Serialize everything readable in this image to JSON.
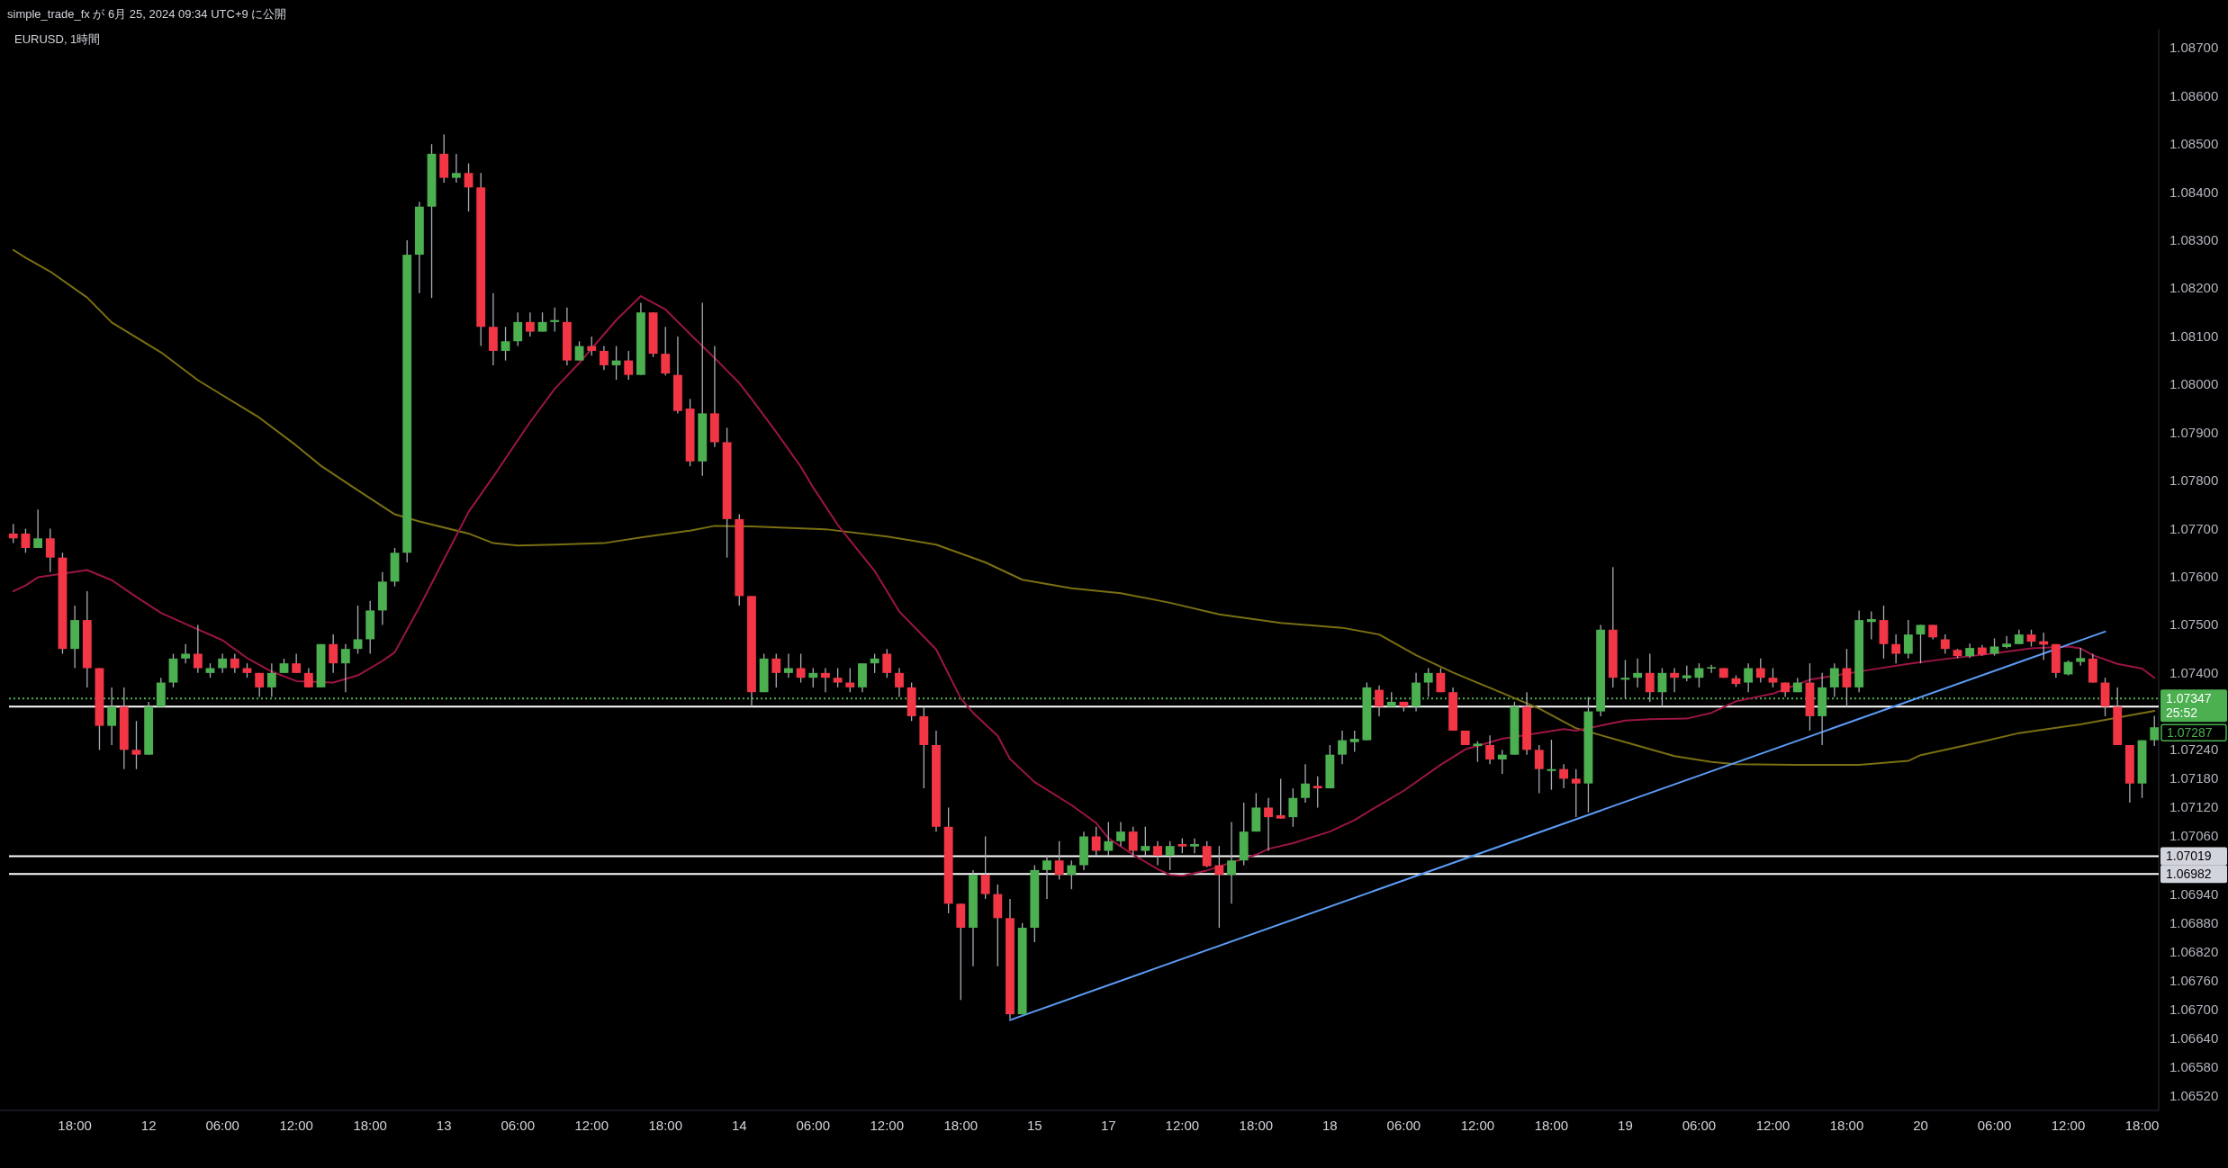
{
  "chart_data": {
    "type": "candlestick",
    "title": "EURUSD, 1時間",
    "annotations": [
      "simple_trade_fx が 6月 25, 2024 09:34 UTC+9 に公開",
      "25:52",
      "1.07287"
    ],
    "categories": [
      null,
      null,
      null,
      null,
      null,
      "18:00",
      null,
      null,
      null,
      null,
      null,
      "12",
      null,
      null,
      null,
      null,
      null,
      "06:00",
      null,
      null,
      null,
      null,
      null,
      "12:00",
      null,
      null,
      null,
      null,
      null,
      "18:00",
      null,
      null,
      null,
      null,
      null,
      "13",
      null,
      null,
      null,
      null,
      null,
      "06:00",
      null,
      null,
      null,
      null,
      null,
      "12:00",
      null,
      null,
      null,
      null,
      null,
      "18:00",
      null,
      null,
      null,
      null,
      null,
      "14",
      null,
      null,
      null,
      null,
      null,
      "06:00",
      null,
      null,
      null,
      null,
      null,
      "12:00",
      null,
      null,
      null,
      null,
      null,
      "18:00",
      null,
      null,
      null,
      null,
      null,
      "15",
      null,
      null,
      null,
      null,
      null,
      "17",
      null,
      null,
      null,
      null,
      null,
      "12:00",
      null,
      null,
      null,
      null,
      null,
      "18:00",
      null,
      null,
      null,
      null,
      null,
      "18",
      null,
      null,
      null,
      null,
      null,
      "06:00",
      null,
      null,
      null,
      null,
      null,
      "12:00",
      null,
      null,
      null,
      null,
      null,
      "18:00",
      null,
      null,
      null,
      null,
      null,
      "19",
      null,
      null,
      null,
      null,
      null,
      "06:00",
      null,
      null,
      null,
      null,
      null,
      "12:00",
      null,
      null,
      null,
      null,
      null,
      "18:00",
      null,
      null,
      null,
      null,
      null,
      "20",
      null,
      null,
      null,
      null,
      null,
      "06:00",
      null,
      null,
      null,
      null,
      null,
      "12:00",
      null,
      null,
      null,
      null,
      null,
      "18:00",
      null
    ],
    "ylim": [
      1.0649,
      1.0874
    ],
    "yticks": [
      {
        "value": 1.087,
        "label": "1.08700"
      },
      {
        "value": 1.086,
        "label": "1.08600"
      },
      {
        "value": 1.085,
        "label": "1.08500"
      },
      {
        "value": 1.084,
        "label": "1.08400"
      },
      {
        "value": 1.083,
        "label": "1.08300"
      },
      {
        "value": 1.082,
        "label": "1.08200"
      },
      {
        "value": 1.081,
        "label": "1.08100"
      },
      {
        "value": 1.08,
        "label": "1.08000"
      },
      {
        "value": 1.079,
        "label": "1.07900"
      },
      {
        "value": 1.078,
        "label": "1.07800"
      },
      {
        "value": 1.077,
        "label": "1.07700"
      },
      {
        "value": 1.076,
        "label": "1.07600"
      },
      {
        "value": 1.075,
        "label": "1.07500"
      },
      {
        "value": 1.074,
        "label": "1.07400"
      },
      {
        "value": 1.0724,
        "label": "1.07240"
      },
      {
        "value": 1.0718,
        "label": "1.07180"
      },
      {
        "value": 1.0712,
        "label": "1.07120"
      },
      {
        "value": 1.0706,
        "label": "1.07060"
      },
      {
        "value": 1.0694,
        "label": "1.06940"
      },
      {
        "value": 1.0688,
        "label": "1.06880"
      },
      {
        "value": 1.0682,
        "label": "1.06820"
      },
      {
        "value": 1.0676,
        "label": "1.06760"
      },
      {
        "value": 1.067,
        "label": "1.06700"
      },
      {
        "value": 1.0664,
        "label": "1.06640"
      },
      {
        "value": 1.0658,
        "label": "1.06580"
      },
      {
        "value": 1.0652,
        "label": "1.06520"
      }
    ],
    "ref_lines": [
      {
        "axis": "y",
        "value": 1.0733,
        "color": "#ffffff"
      },
      {
        "axis": "y",
        "value": 1.07019,
        "label": "1.07019",
        "color": "#ffffff"
      },
      {
        "axis": "y",
        "value": 1.06982,
        "label": "1.06982",
        "color": "#ffffff"
      },
      {
        "axis": "y",
        "value": 1.07347,
        "label": "1.07347",
        "color": "#4caf50",
        "line_style": "dotted"
      }
    ],
    "series": [
      {
        "type": "line",
        "color": "#7a6f12",
        "values": [
          1.0828,
          1.08264,
          null,
          1.08235,
          null,
          null,
          1.08181,
          null,
          1.08129,
          null,
          null,
          null,
          1.08067,
          null,
          null,
          1.08009,
          null,
          null,
          null,
          null,
          1.07931,
          null,
          null,
          1.07873,
          null,
          1.07831,
          null,
          null,
          1.0778,
          null,
          null,
          1.0773,
          null,
          1.07715,
          null,
          null,
          null,
          1.0769,
          null,
          1.0767,
          null,
          1.07665,
          null,
          null,
          1.07667,
          null,
          null,
          null,
          1.0767,
          null,
          null,
          1.07682,
          null,
          null,
          null,
          1.07696,
          null,
          1.07706,
          null,
          null,
          1.07705,
          null,
          null,
          null,
          null,
          null,
          1.07699,
          null,
          null,
          null,
          null,
          1.07684,
          null,
          null,
          null,
          1.07667,
          null,
          null,
          null,
          1.0763,
          null,
          null,
          1.07594,
          null,
          null,
          null,
          1.07576,
          null,
          null,
          null,
          1.07566,
          null,
          null,
          null,
          1.07546,
          null,
          null,
          null,
          1.07522,
          null,
          null,
          null,
          null,
          1.07504,
          null,
          null,
          null,
          null,
          1.07494,
          null,
          null,
          1.0748,
          null,
          null,
          1.07437,
          null,
          null,
          1.07401,
          null,
          null,
          1.07369,
          null,
          null,
          null,
          1.07326,
          null,
          null,
          1.07285,
          null,
          null,
          null,
          1.07256,
          null,
          null,
          null,
          1.07227,
          null,
          null,
          1.07215,
          null,
          1.0721,
          null,
          null,
          null,
          null,
          1.07209,
          null,
          null,
          null,
          null,
          1.07209,
          null,
          null,
          null,
          1.07217,
          1.07229,
          null,
          null,
          null,
          null,
          1.07257,
          null,
          null,
          1.07275,
          null,
          null,
          null,
          null,
          1.07293,
          null,
          null,
          null,
          null,
          null,
          1.07321
        ]
      },
      {
        "type": "line",
        "color": "#9b1545",
        "values": [
          1.0757,
          1.07582,
          1.07599,
          null,
          null,
          null,
          1.07614,
          null,
          1.07593,
          null,
          1.07558,
          null,
          1.07525,
          null,
          1.07502,
          null,
          null,
          1.07468,
          null,
          1.07431,
          null,
          1.07403,
          null,
          1.07383,
          null,
          null,
          1.0738,
          null,
          1.07395,
          null,
          1.07425,
          1.07443,
          null,
          1.07537,
          null,
          1.07636,
          null,
          1.07735,
          null,
          1.07808,
          null,
          null,
          1.07922,
          null,
          1.07991,
          null,
          1.08045,
          null,
          null,
          1.08134,
          null,
          1.08184,
          null,
          1.08156,
          null,
          1.08105,
          null,
          1.08055,
          1.08029,
          1.08003,
          1.0797,
          null,
          1.07901,
          null,
          1.07829,
          1.07786,
          null,
          1.07708,
          null,
          null,
          1.07612,
          null,
          1.07528,
          null,
          null,
          1.07449,
          null,
          1.07347,
          1.07317,
          null,
          1.07269,
          1.07221,
          null,
          1.07173,
          null,
          null,
          1.07125,
          null,
          1.07088,
          1.07056,
          null,
          1.07022,
          null,
          1.06992,
          1.0698,
          1.06978,
          null,
          1.06989,
          null,
          null,
          null,
          1.07022,
          1.07034,
          null,
          1.07046,
          null,
          null,
          1.0707,
          null,
          1.07094,
          null,
          1.07125,
          null,
          1.07155,
          null,
          null,
          1.07209,
          null,
          1.07241,
          null,
          null,
          1.07263,
          null,
          null,
          null,
          null,
          1.07283,
          1.0728,
          null,
          null,
          null,
          1.07301,
          null,
          1.07304,
          null,
          null,
          1.07305,
          null,
          1.07317,
          null,
          1.07341,
          null,
          null,
          1.07357,
          null,
          null,
          1.07386,
          null,
          null,
          null,
          null,
          1.07407,
          null,
          null,
          1.07419,
          null,
          null,
          1.07429,
          null,
          null,
          null,
          1.07441,
          null,
          null,
          1.07451,
          null,
          null,
          1.07455,
          1.07451,
          1.07437,
          null,
          1.07419,
          null,
          1.07409,
          1.0739
        ]
      },
      {
        "type": "line",
        "color": "#5b9cf6",
        "values": [
          null,
          null,
          null,
          null,
          null,
          null,
          null,
          null,
          null,
          null,
          null,
          null,
          null,
          null,
          null,
          null,
          null,
          null,
          null,
          null,
          null,
          null,
          null,
          null,
          null,
          null,
          null,
          null,
          null,
          null,
          null,
          null,
          null,
          null,
          null,
          null,
          null,
          null,
          null,
          null,
          null,
          null,
          null,
          null,
          null,
          null,
          null,
          null,
          null,
          null,
          null,
          null,
          null,
          null,
          null,
          null,
          null,
          null,
          null,
          null,
          null,
          null,
          null,
          null,
          null,
          null,
          null,
          null,
          null,
          null,
          null,
          null,
          null,
          null,
          null,
          null,
          null,
          null,
          null,
          null,
          null,
          1.06678,
          null,
          null,
          null,
          null,
          null,
          null,
          null,
          null,
          null,
          null,
          null,
          null,
          null,
          null,
          null,
          null,
          null,
          null,
          null,
          null,
          null,
          null,
          null,
          null,
          null,
          null,
          null,
          null,
          null,
          null,
          null,
          null,
          null,
          null,
          null,
          null,
          null,
          null,
          null,
          null,
          null,
          null,
          null,
          null,
          null,
          null,
          null,
          null,
          null,
          null,
          null,
          null,
          null,
          null,
          null,
          null,
          null,
          null,
          null,
          null,
          null,
          null,
          null,
          null,
          null,
          null,
          null,
          null,
          null,
          null,
          null,
          null,
          null,
          null,
          null,
          null,
          null,
          null,
          null,
          null,
          null,
          null,
          null,
          null,
          null,
          null,
          null,
          null,
          1.07486,
          null,
          null,
          null,
          null
        ]
      },
      {
        "ohlc": [
          [
            1.0769,
            1.0771,
            1.0767,
            1.0768
          ],
          [
            1.0769,
            1.077,
            1.0765,
            1.0766
          ],
          [
            1.0766,
            1.0774,
            1.0766,
            1.0768
          ],
          [
            1.0768,
            1.077,
            1.0761,
            1.0764
          ],
          [
            1.0764,
            1.0765,
            1.0744,
            1.0745
          ],
          [
            1.0745,
            1.0754,
            1.0741,
            1.0751
          ],
          [
            1.0751,
            1.0757,
            1.0737,
            1.0741
          ],
          [
            1.0741,
            1.0741,
            1.0724,
            1.0729
          ],
          [
            1.0729,
            1.0737,
            1.0725,
            1.0733
          ],
          [
            1.0733,
            1.0737,
            1.072,
            1.0724
          ],
          [
            1.0724,
            1.073,
            1.072,
            1.0723
          ],
          [
            1.0723,
            1.0734,
            1.0723,
            1.0733
          ],
          [
            1.0733,
            1.0739,
            1.0733,
            1.0738
          ],
          [
            1.0738,
            1.0744,
            1.0737,
            1.0743
          ],
          [
            1.0743,
            1.0746,
            1.0742,
            1.0744
          ],
          [
            1.0744,
            1.075,
            1.074,
            1.0741
          ],
          [
            1.074,
            1.0742,
            1.0739,
            1.0741
          ],
          [
            1.0741,
            1.0744,
            1.074,
            1.0743
          ],
          [
            1.0743,
            1.0744,
            1.074,
            1.0741
          ],
          [
            1.0741,
            1.0742,
            1.0739,
            1.074
          ],
          [
            1.074,
            1.074,
            1.0735,
            1.0737
          ],
          [
            1.0737,
            1.0742,
            1.0735,
            1.074
          ],
          [
            1.074,
            1.0743,
            1.074,
            1.0742
          ],
          [
            1.0742,
            1.0744,
            1.074,
            1.074
          ],
          [
            1.074,
            1.0741,
            1.0737,
            1.0737
          ],
          [
            1.0737,
            1.0746,
            1.0737,
            1.0746
          ],
          [
            1.0746,
            1.0748,
            1.074,
            1.0742
          ],
          [
            1.0742,
            1.0746,
            1.0736,
            1.0745
          ],
          [
            1.0745,
            1.0754,
            1.0744,
            1.0747
          ],
          [
            1.0747,
            1.0755,
            1.0744,
            1.0753
          ],
          [
            1.0753,
            1.0761,
            1.075,
            1.0759
          ],
          [
            1.0759,
            1.0766,
            1.0758,
            1.0765
          ],
          [
            1.0765,
            1.083,
            1.0763,
            1.0827
          ],
          [
            1.0827,
            1.0838,
            1.0819,
            1.0837
          ],
          [
            1.0837,
            1.085,
            1.0818,
            1.0848
          ],
          [
            1.0848,
            1.0852,
            1.0842,
            1.0843
          ],
          [
            1.0843,
            1.0848,
            1.0842,
            1.0844
          ],
          [
            1.0844,
            1.0846,
            1.0836,
            1.0841
          ],
          [
            1.0841,
            1.0844,
            1.0808,
            1.0812
          ],
          [
            1.0812,
            1.0819,
            1.0804,
            1.0807
          ],
          [
            1.0807,
            1.0812,
            1.0805,
            1.0809
          ],
          [
            1.0809,
            1.0815,
            1.0808,
            1.0813
          ],
          [
            1.0813,
            1.0815,
            1.081,
            1.0811
          ],
          [
            1.0811,
            1.0815,
            1.0811,
            1.0813
          ],
          [
            1.0813,
            1.0816,
            1.0811,
            1.08134
          ],
          [
            1.0813,
            1.0816,
            1.0804,
            1.0805
          ],
          [
            1.0805,
            1.0809,
            1.0805,
            1.0808
          ],
          [
            1.0808,
            1.081,
            1.0806,
            1.0807
          ],
          [
            1.0807,
            1.0808,
            1.0803,
            1.0804
          ],
          [
            1.0804,
            1.0808,
            1.0801,
            1.0805
          ],
          [
            1.0805,
            1.0807,
            1.0801,
            1.0802
          ],
          [
            1.0802,
            1.0817,
            1.0802,
            1.0815
          ],
          [
            1.0815,
            1.0815,
            1.08057,
            1.08064
          ],
          [
            1.08064,
            1.0812,
            1.08019,
            1.08023
          ],
          [
            1.0802,
            1.081,
            1.0794,
            1.07945
          ],
          [
            1.0795,
            1.0797,
            1.0783,
            1.0784
          ],
          [
            1.0784,
            1.0817,
            1.0781,
            1.0794
          ],
          [
            1.0794,
            1.0808,
            1.0787,
            1.0788
          ],
          [
            1.0788,
            1.0791,
            1.0764,
            1.0772
          ],
          [
            1.0772,
            1.0773,
            1.0754,
            1.0756
          ],
          [
            1.0756,
            1.0756,
            1.0733,
            1.0736
          ],
          [
            1.0736,
            1.0744,
            1.0736,
            1.0743
          ],
          [
            1.0743,
            1.0744,
            1.0737,
            1.074
          ],
          [
            1.074,
            1.0744,
            1.0739,
            1.0741
          ],
          [
            1.0741,
            1.0744,
            1.0738,
            1.0739
          ],
          [
            1.0739,
            1.0741,
            1.0737,
            1.074
          ],
          [
            1.074,
            1.0741,
            1.0736,
            1.0739
          ],
          [
            1.0739,
            1.0741,
            1.0737,
            1.0738
          ],
          [
            1.0738,
            1.0741,
            1.0736,
            1.0737
          ],
          [
            1.0737,
            1.0742,
            1.0736,
            1.0742
          ],
          [
            1.0742,
            1.0744,
            1.074,
            1.0743
          ],
          [
            1.0744,
            1.0745,
            1.0739,
            1.074
          ],
          [
            1.074,
            1.0741,
            1.0735,
            1.0737
          ],
          [
            1.0737,
            1.0738,
            1.073,
            1.0731
          ],
          [
            1.0731,
            1.0733,
            1.0716,
            1.0725
          ],
          [
            1.0725,
            1.0728,
            1.0707,
            1.0708
          ],
          [
            1.0708,
            1.0712,
            1.069,
            1.0692
          ],
          [
            1.0692,
            1.0692,
            1.0672,
            1.0687
          ],
          [
            1.0687,
            1.0699,
            1.0679,
            1.0698
          ],
          [
            1.0698,
            1.0706,
            1.0693,
            1.0694
          ],
          [
            1.0694,
            1.0696,
            1.0679,
            1.0689
          ],
          [
            1.0689,
            1.0693,
            1.0668,
            1.0669
          ],
          [
            1.0669,
            1.0688,
            1.0669,
            1.0687
          ],
          [
            1.0687,
            1.07,
            1.0684,
            1.0699
          ],
          [
            1.0699,
            1.0702,
            1.0693,
            1.0701
          ],
          [
            1.0701,
            1.0705,
            1.0697,
            1.0698
          ],
          [
            1.0698,
            1.0701,
            1.0695,
            1.07
          ],
          [
            1.07,
            1.0707,
            1.0699,
            1.0706
          ],
          [
            1.0706,
            1.0708,
            1.0702,
            1.0703
          ],
          [
            1.0703,
            1.0709,
            1.0702,
            1.0705
          ],
          [
            1.0705,
            1.0709,
            1.0704,
            1.0707
          ],
          [
            1.0707,
            1.0708,
            1.0702,
            1.0703
          ],
          [
            1.0703,
            1.0708,
            1.0702,
            1.0704
          ],
          [
            1.0704,
            1.0705,
            1.07,
            1.0702
          ],
          [
            1.0702,
            1.0705,
            1.0699,
            1.0704
          ],
          [
            1.07044,
            1.07056,
            1.07025,
            1.07039
          ],
          [
            1.07039,
            1.07056,
            1.07025,
            1.07044
          ],
          [
            1.0704,
            1.0705,
            1.06996,
            1.06998
          ],
          [
            1.07,
            1.0704,
            1.0687,
            1.0698
          ],
          [
            1.0698,
            1.0709,
            1.0692,
            1.0701
          ],
          [
            1.0701,
            1.0713,
            1.07,
            1.0707
          ],
          [
            1.0707,
            1.0715,
            1.0707,
            1.0712
          ],
          [
            1.0712,
            1.0714,
            1.0703,
            1.071
          ],
          [
            1.07104,
            1.0718,
            1.07097,
            1.07097
          ],
          [
            1.071,
            1.0716,
            1.0708,
            1.0714
          ],
          [
            1.0714,
            1.0721,
            1.0713,
            1.0717
          ],
          [
            1.07165,
            1.07185,
            1.0712,
            1.0716
          ],
          [
            1.0716,
            1.0725,
            1.0716,
            1.0723
          ],
          [
            1.0723,
            1.0728,
            1.0721,
            1.0726
          ],
          [
            1.07256,
            1.0728,
            1.07236,
            1.07263
          ],
          [
            1.0726,
            1.0738,
            1.0726,
            1.0737
          ],
          [
            1.07365,
            1.07374,
            1.0731,
            1.0733
          ],
          [
            1.0733,
            1.0736,
            1.0733,
            1.0734
          ],
          [
            1.0734,
            1.0734,
            1.0732,
            1.0733
          ],
          [
            1.0733,
            1.074,
            1.0732,
            1.0738
          ],
          [
            1.0738,
            1.0741,
            1.0735,
            1.074
          ],
          [
            1.074,
            1.0741,
            1.0736,
            1.0736
          ],
          [
            1.0736,
            1.0737,
            1.0728,
            1.0728
          ],
          [
            1.0728,
            1.0728,
            1.0725,
            1.0725
          ],
          [
            1.07248,
            1.07258,
            1.07215,
            1.07253
          ],
          [
            1.0725,
            1.0727,
            1.0721,
            1.0722
          ],
          [
            1.0722,
            1.0724,
            1.0719,
            1.0723
          ],
          [
            1.0723,
            1.0734,
            1.0723,
            1.0733
          ],
          [
            1.0733,
            1.0736,
            1.0723,
            1.0724
          ],
          [
            1.0724,
            1.0725,
            1.0715,
            1.072
          ],
          [
            1.07196,
            1.07261,
            1.07157,
            1.072
          ],
          [
            1.072,
            1.0721,
            1.0716,
            1.0718
          ],
          [
            1.0718,
            1.072,
            1.071,
            1.0717
          ],
          [
            1.0717,
            1.0735,
            1.0711,
            1.0732
          ],
          [
            1.0732,
            1.075,
            1.0731,
            1.0749
          ],
          [
            1.0749,
            1.0762,
            1.0737,
            1.0739
          ],
          [
            1.07386,
            1.07427,
            1.07347,
            1.0739
          ],
          [
            1.0739,
            1.0743,
            1.0737,
            1.074
          ],
          [
            1.074,
            1.0744,
            1.0734,
            1.0736
          ],
          [
            1.0736,
            1.0741,
            1.0733,
            1.074
          ],
          [
            1.074,
            1.0741,
            1.0736,
            1.0739
          ],
          [
            1.07389,
            1.07415,
            1.07383,
            1.07395
          ],
          [
            1.0739,
            1.0742,
            1.0737,
            1.0741
          ],
          [
            1.07409,
            1.07417,
            1.074,
            1.07412
          ],
          [
            1.0741,
            1.0741,
            1.0739,
            1.0739
          ],
          [
            1.07389,
            1.07395,
            1.07371,
            1.07377
          ],
          [
            1.0738,
            1.0742,
            1.0736,
            1.0741
          ],
          [
            1.0741,
            1.0743,
            1.0738,
            1.0739
          ],
          [
            1.0739,
            1.0741,
            1.0737,
            1.0738
          ],
          [
            1.0738,
            1.0738,
            1.0735,
            1.0736
          ],
          [
            1.0736,
            1.0739,
            1.0736,
            1.0738
          ],
          [
            1.0738,
            1.0742,
            1.0728,
            1.0731
          ],
          [
            1.0731,
            1.074,
            1.0725,
            1.0737
          ],
          [
            1.0737,
            1.0742,
            1.0735,
            1.0741
          ],
          [
            1.0741,
            1.0745,
            1.0733,
            1.0737
          ],
          [
            1.0737,
            1.0753,
            1.0736,
            1.0751
          ],
          [
            1.07506,
            1.07528,
            1.0747,
            1.07512
          ],
          [
            1.0751,
            1.0754,
            1.0743,
            1.0746
          ],
          [
            1.0746,
            1.0748,
            1.0742,
            1.0744
          ],
          [
            1.0744,
            1.0751,
            1.0743,
            1.0748
          ],
          [
            1.0748,
            1.075,
            1.0742,
            1.075
          ],
          [
            1.075,
            1.075,
            1.0747,
            1.07474
          ],
          [
            1.0747,
            1.0748,
            1.0744,
            1.0745
          ],
          [
            1.07448,
            1.0745,
            1.07431,
            1.07435
          ],
          [
            1.07435,
            1.07461,
            1.07431,
            1.07452
          ],
          [
            1.07453,
            1.07458,
            1.07436,
            1.07438
          ],
          [
            1.0744,
            1.07472,
            1.07436,
            1.07455
          ],
          [
            1.07454,
            1.07477,
            1.07451,
            1.07461
          ],
          [
            1.0746,
            1.0749,
            1.0746,
            1.0748
          ],
          [
            1.0748,
            1.0749,
            1.07455,
            1.07465
          ],
          [
            1.07466,
            1.07484,
            1.07427,
            1.07459
          ],
          [
            1.0746,
            1.0746,
            1.0739,
            1.074
          ],
          [
            1.07397,
            1.07426,
            1.07395,
            1.07423
          ],
          [
            1.07423,
            1.07452,
            1.07415,
            1.07431
          ],
          [
            1.0743,
            1.0744,
            1.0738,
            1.0738
          ],
          [
            1.0738,
            1.0739,
            1.0731,
            1.0733
          ],
          [
            1.0733,
            1.0737,
            1.0725,
            1.0725
          ],
          [
            1.0725,
            1.0725,
            1.0713,
            1.0717
          ],
          [
            1.0717,
            1.0726,
            1.0714,
            1.0726
          ],
          [
            1.0726,
            1.07311,
            1.07248,
            1.07287
          ]
        ],
        "colors": [
          "#f23645",
          "#f23645",
          "#4caf50",
          "#f23645",
          "#f23645",
          "#4caf50",
          "#f23645",
          "#f23645",
          "#4caf50",
          "#f23645",
          "#f23645",
          "#4caf50",
          "#4caf50",
          "#4caf50",
          "#4caf50",
          "#f23645",
          "#4caf50",
          "#4caf50",
          "#f23645",
          "#f23645",
          "#f23645",
          "#4caf50",
          "#4caf50",
          "#f23645",
          "#f23645",
          "#4caf50",
          "#f23645",
          "#4caf50",
          "#4caf50",
          "#4caf50",
          "#4caf50",
          "#4caf50",
          "#4caf50",
          "#4caf50",
          "#4caf50",
          "#f23645",
          "#4caf50",
          "#f23645",
          "#f23645",
          "#f23645",
          "#4caf50",
          "#4caf50",
          "#f23645",
          "#4caf50",
          "#4caf50",
          "#f23645",
          "#4caf50",
          "#f23645",
          "#f23645",
          "#4caf50",
          "#f23645",
          "#4caf50",
          "#f23645",
          "#f23645",
          "#f23645",
          "#f23645",
          "#4caf50",
          "#f23645",
          "#f23645",
          "#f23645",
          "#f23645",
          "#4caf50",
          "#f23645",
          "#4caf50",
          "#f23645",
          "#4caf50",
          "#f23645",
          "#f23645",
          "#f23645",
          "#4caf50",
          "#4caf50",
          "#f23645",
          "#f23645",
          "#f23645",
          "#f23645",
          "#f23645",
          "#f23645",
          "#f23645",
          "#4caf50",
          "#f23645",
          "#f23645",
          "#f23645",
          "#4caf50",
          "#4caf50",
          "#4caf50",
          "#f23645",
          "#4caf50",
          "#4caf50",
          "#f23645",
          "#4caf50",
          "#4caf50",
          "#f23645",
          "#4caf50",
          "#f23645",
          "#4caf50",
          "#f23645",
          "#4caf50",
          "#f23645",
          "#f23645",
          "#4caf50",
          "#4caf50",
          "#4caf50",
          "#f23645",
          "#f23645",
          "#4caf50",
          "#4caf50",
          "#f23645",
          "#4caf50",
          "#4caf50",
          "#4caf50",
          "#4caf50",
          "#f23645",
          "#4caf50",
          "#f23645",
          "#4caf50",
          "#4caf50",
          "#f23645",
          "#f23645",
          "#f23645",
          "#4caf50",
          "#f23645",
          "#4caf50",
          "#4caf50",
          "#f23645",
          "#f23645",
          "#4caf50",
          "#f23645",
          "#f23645",
          "#4caf50",
          "#4caf50",
          "#f23645",
          "#4caf50",
          "#4caf50",
          "#f23645",
          "#4caf50",
          "#f23645",
          "#4caf50",
          "#4caf50",
          "#4caf50",
          "#f23645",
          "#f23645",
          "#4caf50",
          "#f23645",
          "#f23645",
          "#f23645",
          "#4caf50",
          "#f23645",
          "#4caf50",
          "#4caf50",
          "#f23645",
          "#4caf50",
          "#4caf50",
          "#f23645",
          "#f23645",
          "#4caf50",
          "#4caf50",
          "#f23645",
          "#f23645",
          "#f23645",
          "#4caf50",
          "#f23645",
          "#4caf50",
          "#4caf50",
          "#4caf50",
          "#f23645",
          "#f23645",
          "#f23645",
          "#4caf50",
          "#4caf50",
          "#f23645",
          "#f23645",
          "#f23645",
          "#f23645",
          "#4caf50",
          "#4caf50"
        ]
      }
    ]
  }
}
